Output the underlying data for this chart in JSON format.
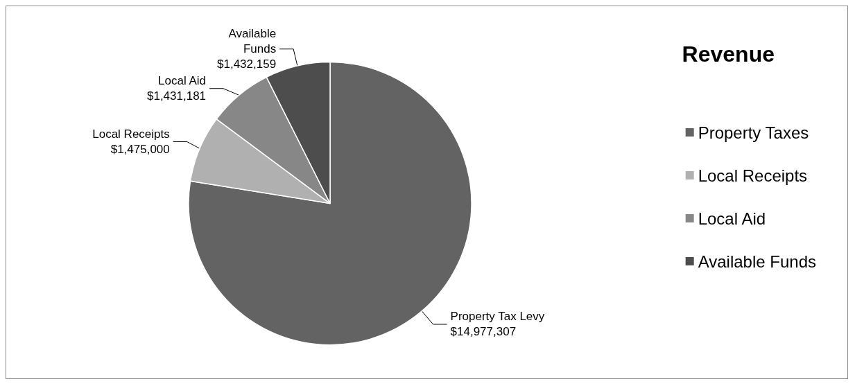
{
  "chart_data": {
    "type": "pie",
    "title": "Revenue",
    "categories": [
      "Property Taxes",
      "Local Receipts",
      "Local Aid",
      "Available Funds"
    ],
    "values": [
      14977307,
      1475000,
      1431181,
      1432159
    ],
    "colors": [
      "#636363",
      "#b0b0b0",
      "#878787",
      "#4d4d4d"
    ],
    "value_labels": [
      "Property Tax Levy\n$14,977,307",
      "Local Receipts\n$1,475,000",
      "Local Aid\n$1,431,181",
      "Available\nFunds\n$1,432,159"
    ],
    "legend": "right"
  }
}
